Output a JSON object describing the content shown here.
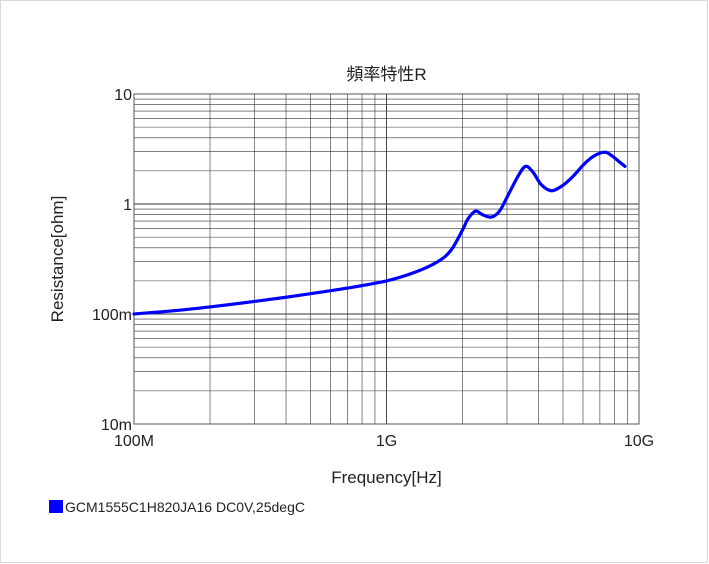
{
  "chart_data": {
    "type": "line",
    "title": "頻率特性R",
    "xlabel": "Frequency[Hz]",
    "ylabel": "Resistance[ohm]",
    "x_scale": "log",
    "y_scale": "log",
    "xlim": [
      100000000,
      10000000000
    ],
    "ylim": [
      0.01,
      10
    ],
    "grid": true,
    "x_ticks": [
      {
        "value": 100000000,
        "label": "100M"
      },
      {
        "value": 1000000000,
        "label": "1G"
      },
      {
        "value": 10000000000,
        "label": "10G"
      }
    ],
    "y_ticks": [
      {
        "value": 10,
        "label": "10"
      },
      {
        "value": 1,
        "label": "1"
      },
      {
        "value": 0.1,
        "label": "100m"
      },
      {
        "value": 0.01,
        "label": "10m"
      }
    ],
    "legend_position": "bottom-left",
    "series": [
      {
        "name": "GCM1555C1H820JA16 DC0V,25degC",
        "color": "#0000ff",
        "x": [
          100000000,
          150000000,
          200000000,
          300000000,
          400000000,
          500000000,
          700000000,
          1000000000,
          1300000000,
          1600000000,
          1800000000,
          2000000000,
          2100000000,
          2250000000,
          2400000000,
          2600000000,
          2800000000,
          3000000000,
          3300000000,
          3550000000,
          3800000000,
          4100000000,
          4500000000,
          5000000000,
          5500000000,
          6000000000,
          6500000000,
          7000000000,
          7400000000,
          7800000000,
          8300000000,
          8800000000
        ],
        "y": [
          0.1,
          0.108,
          0.116,
          0.13,
          0.142,
          0.153,
          0.172,
          0.2,
          0.24,
          0.3,
          0.38,
          0.58,
          0.73,
          0.86,
          0.8,
          0.76,
          0.86,
          1.15,
          1.75,
          2.2,
          1.95,
          1.5,
          1.32,
          1.48,
          1.8,
          2.25,
          2.65,
          2.9,
          2.95,
          2.75,
          2.45,
          2.2
        ]
      }
    ]
  }
}
